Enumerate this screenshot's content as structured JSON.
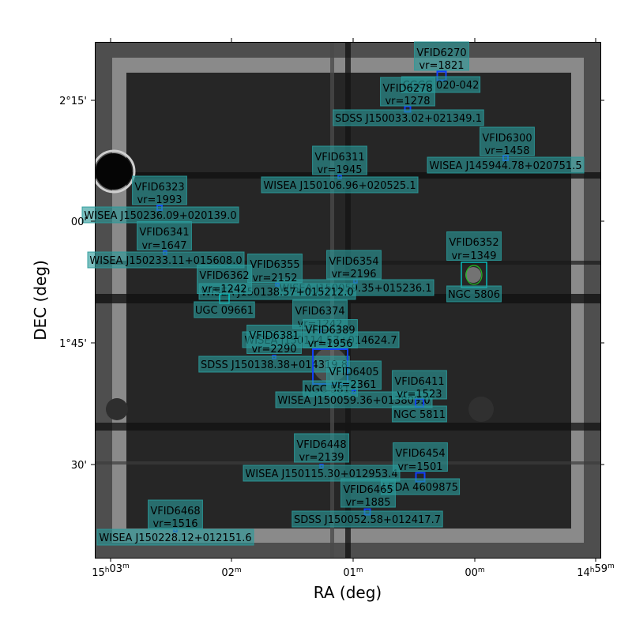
{
  "axes": {
    "xlabel": "RA (deg)",
    "ylabel": "DEC (deg)",
    "xticks": [
      {
        "h": "15",
        "hu": "h",
        "m": "03",
        "mu": "m"
      },
      {
        "h": "",
        "hu": "",
        "m": "02",
        "mu": "m"
      },
      {
        "h": "",
        "hu": "",
        "m": "01",
        "mu": "m"
      },
      {
        "h": "",
        "hu": "",
        "m": "00",
        "mu": "m"
      },
      {
        "h": "14",
        "hu": "h",
        "m": "59",
        "mu": "m"
      }
    ],
    "yticks": [
      "2°15'",
      "00'",
      "1°45'",
      "30'"
    ]
  },
  "galaxies": [
    {
      "id": "VFID6270",
      "vr": "vr=1821",
      "name": "CGCG 020-042"
    },
    {
      "id": "VFID6278",
      "vr": "vr=1278",
      "name": "SDSS J150033.02+021349.1"
    },
    {
      "id": "VFID6300",
      "vr": "vr=1458",
      "name": "WISEA J145944.78+020751.5"
    },
    {
      "id": "VFID6311",
      "vr": "vr=1945",
      "name": "WISEA J150106.96+020525.1"
    },
    {
      "id": "VFID6323",
      "vr": "vr=1993",
      "name": "WISEA J150236.09+020139.0"
    },
    {
      "id": "VFID6341",
      "vr": "vr=1647",
      "name": "WISEA J150233.11+015608.0"
    },
    {
      "id": "VFID6352",
      "vr": "vr=1349",
      "name": "NGC 5806"
    },
    {
      "id": "VFID6354",
      "vr": "vr=2196",
      "name": "WISEA J150059.35+015236.1"
    },
    {
      "id": "VFID6355",
      "vr": "vr=2152",
      "name": "WISEA J150138.57+015212.0"
    },
    {
      "id": "VFID6362",
      "vr": "vr=1242",
      "name": "UGC 09661"
    },
    {
      "id": "VFID6374",
      "vr": "vr=1242",
      "name": "WISEA J150114.57+014624.7"
    },
    {
      "id": "VFID6381",
      "vr": "vr=2290",
      "name": "SDSS J150138.38+014319.8"
    },
    {
      "id": "VFID6389",
      "vr": "vr=1956",
      "name": "NGC 5813"
    },
    {
      "id": "VFID6405",
      "vr": "vr=2361",
      "name": "WISEA J150059.36+013809.0"
    },
    {
      "id": "VFID6411",
      "vr": "vr=1523",
      "name": "NGC 5811"
    },
    {
      "id": "VFID6448",
      "vr": "vr=2139",
      "name": "WISEA J150115.30+012953.4"
    },
    {
      "id": "VFID6454",
      "vr": "vr=1501",
      "name": "LEDA 4609875"
    },
    {
      "id": "VFID6465",
      "vr": "vr=1885",
      "name": "SDSS J150052.58+012417.7"
    },
    {
      "id": "VFID6468",
      "vr": "vr=1516",
      "name": "WISEA J150228.12+012151.6"
    }
  ],
  "colors": {
    "label_box": "#2a9a9a",
    "marker": "#1040ff",
    "ellipse": "#22bb22",
    "cyan_box": "#00e0e0"
  }
}
